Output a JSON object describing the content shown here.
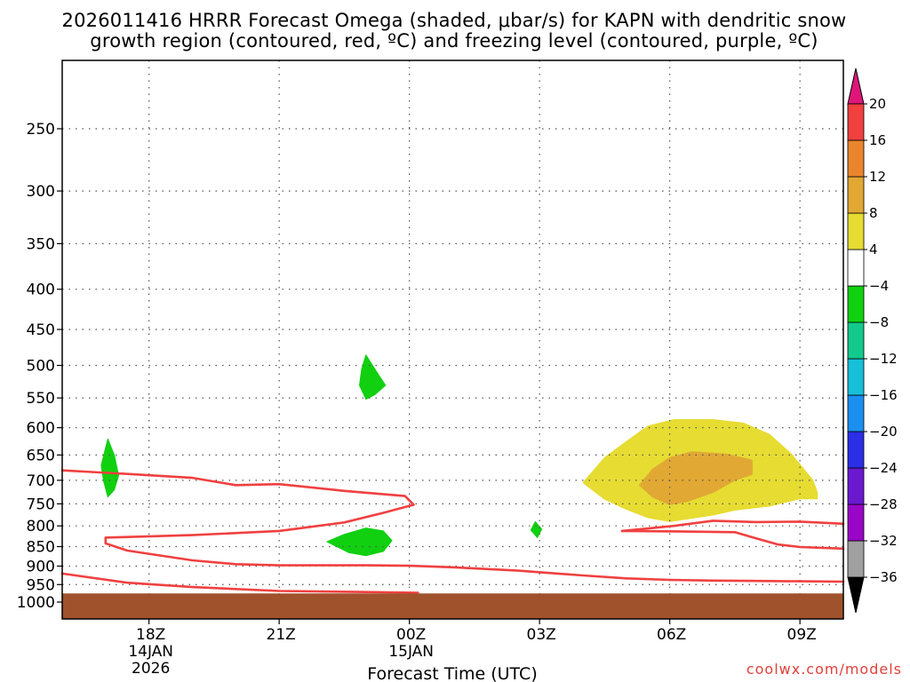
{
  "chart_data": {
    "type": "time-height cross section",
    "title_lines": [
      "2026011416 HRRR Forecast Omega (shaded, μbar/s) for KAPN with dendritic snow",
      "growth region (contoured, red, ºC) and freezing level (contoured, purple, ºC)"
    ],
    "xlabel": "Forecast Time (UTC)",
    "credit": "coolwx.com/models",
    "x_unit": "hours after 15Z 14JAN2026",
    "xlim": [
      1,
      19
    ],
    "x_ticks": [
      {
        "hour": 3,
        "lines": [
          "18Z",
          "14JAN",
          "2026"
        ]
      },
      {
        "hour": 6,
        "lines": [
          "21Z"
        ]
      },
      {
        "hour": 9,
        "lines": [
          "00Z",
          "15JAN"
        ]
      },
      {
        "hour": 12,
        "lines": [
          "03Z"
        ]
      },
      {
        "hour": 15,
        "lines": [
          "06Z"
        ]
      },
      {
        "hour": 18,
        "lines": [
          "09Z"
        ]
      }
    ],
    "y_unit": "hPa",
    "ylim": [
      1013,
      200
    ],
    "y_ticks": [
      250,
      300,
      350,
      400,
      450,
      500,
      550,
      600,
      650,
      700,
      750,
      800,
      850,
      900,
      950,
      1000
    ],
    "grid": "dotted",
    "ground": {
      "color": "#a0522d",
      "top_hPa": 975
    },
    "colorbar": {
      "levels": [
        -36,
        -32,
        -28,
        -24,
        -20,
        -16,
        -12,
        -8,
        -4,
        4,
        8,
        12,
        16,
        20
      ],
      "bins": [
        {
          "lo": -32,
          "hi": -28,
          "color": "#9a06c6"
        },
        {
          "lo": -28,
          "hi": -24,
          "color": "#6b19cf"
        },
        {
          "lo": -24,
          "hi": -20,
          "color": "#2b2fe6"
        },
        {
          "lo": -20,
          "hi": -16,
          "color": "#1b8ff0"
        },
        {
          "lo": -16,
          "hi": -12,
          "color": "#17bfd8"
        },
        {
          "lo": -12,
          "hi": -8,
          "color": "#14c98c"
        },
        {
          "lo": -8,
          "hi": -4,
          "color": "#10d010"
        },
        {
          "lo": -4,
          "hi": 4,
          "color": "#ffffff"
        },
        {
          "lo": 4,
          "hi": 8,
          "color": "#e6dc32"
        },
        {
          "lo": 8,
          "hi": 12,
          "color": "#e2a834"
        },
        {
          "lo": 12,
          "hi": 16,
          "color": "#e9862d"
        },
        {
          "lo": 16,
          "hi": 20,
          "color": "#f04040"
        }
      ],
      "under_color": "#a0a0a0",
      "over_color": "#e0157a",
      "below_triangle_color": "#000000"
    },
    "shaded_regions": [
      {
        "name": "omega-green-17z",
        "value_bin": "-8 to -4",
        "color": "#10d010",
        "points": [
          [
            2.05,
            620
          ],
          [
            2.2,
            650
          ],
          [
            2.3,
            690
          ],
          [
            2.2,
            720
          ],
          [
            2.05,
            735
          ],
          [
            1.95,
            700
          ],
          [
            1.9,
            670
          ]
        ]
      },
      {
        "name": "omega-green-2330z",
        "value_bin": "-8 to -4",
        "color": "#10d010",
        "points": [
          [
            8.0,
            485
          ],
          [
            8.3,
            515
          ],
          [
            8.45,
            530
          ],
          [
            8.2,
            545
          ],
          [
            8.0,
            552
          ],
          [
            7.85,
            530
          ],
          [
            7.9,
            505
          ]
        ]
      },
      {
        "name": "omega-green-2230z",
        "value_bin": "-8 to -4",
        "color": "#10d010",
        "points": [
          [
            7.1,
            838
          ],
          [
            7.5,
            820
          ],
          [
            8.0,
            805
          ],
          [
            8.4,
            812
          ],
          [
            8.6,
            835
          ],
          [
            8.4,
            862
          ],
          [
            8.0,
            873
          ],
          [
            7.6,
            865
          ]
        ]
      },
      {
        "name": "omega-green-02z",
        "value_bin": "-8 to -4",
        "color": "#10d010",
        "points": [
          [
            11.9,
            790
          ],
          [
            12.05,
            808
          ],
          [
            11.95,
            828
          ],
          [
            11.8,
            810
          ]
        ]
      },
      {
        "name": "omega-yellow-05z",
        "value_bin": "4 to 8",
        "color": "#e6dc32",
        "points": [
          [
            13.0,
            705
          ],
          [
            13.5,
            655
          ],
          [
            14.0,
            625
          ],
          [
            14.5,
            597
          ],
          [
            15.1,
            586
          ],
          [
            16.0,
            586
          ],
          [
            16.7,
            592
          ],
          [
            17.3,
            612
          ],
          [
            17.8,
            648
          ],
          [
            18.0,
            668
          ],
          [
            18.3,
            700
          ],
          [
            18.4,
            725
          ],
          [
            18.4,
            739
          ],
          [
            18.0,
            739
          ],
          [
            17.3,
            755
          ],
          [
            16.5,
            764
          ],
          [
            16.0,
            775
          ],
          [
            15.0,
            790
          ],
          [
            14.5,
            781
          ],
          [
            14.0,
            762
          ],
          [
            13.5,
            740
          ]
        ]
      },
      {
        "name": "omega-orange-06z",
        "value_bin": "8 to 12",
        "color": "#e2a834",
        "points": [
          [
            14.3,
            710
          ],
          [
            14.6,
            678
          ],
          [
            15.0,
            655
          ],
          [
            15.5,
            644
          ],
          [
            16.3,
            648
          ],
          [
            16.9,
            660
          ],
          [
            16.9,
            688
          ],
          [
            16.5,
            700
          ],
          [
            16.0,
            725
          ],
          [
            15.4,
            745
          ],
          [
            15.0,
            752
          ],
          [
            14.6,
            735
          ]
        ]
      }
    ],
    "contour_lines": [
      {
        "name": "dgz-contour-upper",
        "color": "#f04040",
        "points": [
          [
            1.0,
            680
          ],
          [
            2.5,
            687
          ],
          [
            4.0,
            695
          ],
          [
            5.0,
            710
          ],
          [
            6.0,
            708
          ],
          [
            7.5,
            722
          ],
          [
            8.9,
            733
          ],
          [
            9.1,
            752
          ],
          [
            8.4,
            770
          ],
          [
            7.5,
            792
          ],
          [
            6.0,
            812
          ],
          [
            4.0,
            822
          ],
          [
            2.0,
            828
          ],
          [
            2.0,
            842
          ],
          [
            2.5,
            860
          ],
          [
            4.0,
            885
          ],
          [
            5.0,
            895
          ],
          [
            6.0,
            898
          ],
          [
            8.0,
            898
          ],
          [
            9.0,
            899
          ],
          [
            10.0,
            903
          ],
          [
            11.5,
            912
          ],
          [
            13.0,
            925
          ],
          [
            14.0,
            933
          ],
          [
            15.0,
            937
          ],
          [
            16.0,
            939
          ],
          [
            17.0,
            940
          ],
          [
            18.0,
            941
          ],
          [
            19.0,
            942
          ]
        ]
      },
      {
        "name": "dgz-contour-lower",
        "color": "#f04040",
        "points": [
          [
            13.9,
            812
          ],
          [
            15.1,
            800
          ],
          [
            16.0,
            788
          ],
          [
            17.0,
            791
          ],
          [
            18.0,
            790
          ],
          [
            19.0,
            795
          ]
        ]
      },
      {
        "name": "dgz-contour-lower-return",
        "color": "#f04040",
        "points": [
          [
            13.9,
            812
          ],
          [
            15.2,
            813
          ],
          [
            16.5,
            815
          ],
          [
            17.0,
            830
          ],
          [
            17.5,
            845
          ],
          [
            18.0,
            851
          ],
          [
            19.0,
            855
          ]
        ]
      },
      {
        "name": "freezing-level-near-surface",
        "color": "#f04040",
        "points": [
          [
            1.0,
            920
          ],
          [
            2.5,
            945
          ],
          [
            4.0,
            957
          ],
          [
            6.0,
            968
          ],
          [
            8.0,
            971
          ],
          [
            9.2,
            973
          ]
        ]
      }
    ]
  }
}
